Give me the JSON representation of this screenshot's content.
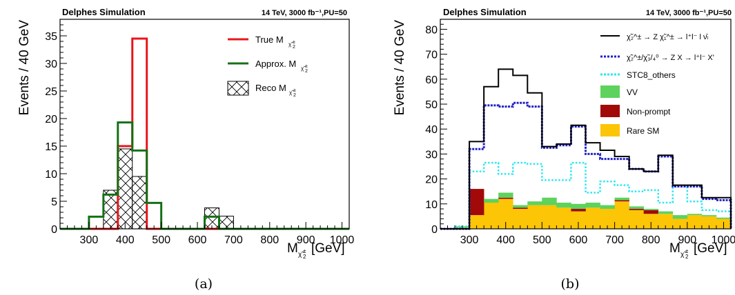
{
  "panels": [
    {
      "caption": "(a)",
      "header_left": "Delphes Simulation",
      "header_right": "14 TeV, 3000 fb⁻¹,PU=50",
      "chart_data": {
        "type": "bar",
        "style": "step-histogram",
        "ylabel": "Events / 40 GeV",
        "xlabel": "M_χ̃₂^± [GeV]",
        "xlim": [
          220,
          1020
        ],
        "ylim": [
          0,
          38
        ],
        "xticks": [
          300,
          400,
          500,
          600,
          700,
          800,
          900,
          1000
        ],
        "yticks": [
          0,
          5,
          10,
          15,
          20,
          25,
          30,
          35
        ],
        "bin_edges": [
          220,
          260,
          300,
          340,
          380,
          420,
          460,
          500,
          540,
          580,
          620,
          660,
          700,
          740,
          780,
          820,
          860,
          900,
          940,
          980,
          1020
        ],
        "legend_position": "top-right",
        "series": [
          {
            "name": "True M_χ̃₂^±",
            "draw": "line",
            "color": "#e8151b",
            "values": [
              0,
              0,
              0,
              0,
              15,
              34.5,
              0,
              0,
              0,
              0,
              0,
              0,
              0,
              0,
              0,
              0,
              0,
              0,
              0,
              0
            ]
          },
          {
            "name": "Approx. M_χ̃₂^±",
            "draw": "line",
            "color": "#157015",
            "values": [
              0,
              0,
              2.2,
              6.2,
              19.3,
              14.2,
              4.7,
              0,
              0,
              0,
              2.2,
              0,
              0,
              0,
              0,
              0,
              0,
              0,
              0,
              0
            ]
          },
          {
            "name": "Reco M_χ̃₂^±",
            "draw": "hatched",
            "color": "#000000",
            "values": [
              0,
              0,
              0,
              7.0,
              14.5,
              9.5,
              0,
              0,
              0,
              0,
              3.8,
              2.3,
              0,
              0,
              0,
              0,
              0,
              0,
              0,
              0
            ]
          }
        ]
      }
    },
    {
      "caption": "(b)",
      "header_left": "Delphes Simulation",
      "header_right": "14 TeV, 3000 fb⁻¹,PU=50",
      "chart_data": {
        "type": "bar",
        "style": "stacked-histogram",
        "ylabel": "Events / 40 GeV",
        "xlabel": "M_χ̃₂^± [GeV]",
        "xlim": [
          220,
          1020
        ],
        "ylim": [
          0,
          84
        ],
        "xticks": [
          300,
          400,
          500,
          600,
          700,
          800,
          900,
          1000
        ],
        "yticks": [
          0,
          10,
          20,
          30,
          40,
          50,
          60,
          70,
          80
        ],
        "bin_edges": [
          220,
          260,
          300,
          340,
          380,
          420,
          460,
          500,
          540,
          580,
          620,
          660,
          700,
          740,
          780,
          820,
          860,
          900,
          940,
          980,
          1020
        ],
        "legend_position": "top-right",
        "stack": [
          {
            "name": "Rare SM",
            "color": "#fcc505",
            "values": [
              0,
              0.5,
              5.5,
              10.5,
              12,
              8,
              9.5,
              9.5,
              8.5,
              7,
              8.5,
              8,
              11,
              7.5,
              6,
              6,
              4,
              5.5,
              5,
              4
            ]
          },
          {
            "name": "Non-prompt",
            "color": "#a10a08",
            "values": [
              0,
              0,
              10.5,
              0,
              0.5,
              0.5,
              0,
              0,
              0,
              1,
              0,
              0,
              0.5,
              0.5,
              1.5,
              0,
              0,
              0,
              0,
              0
            ]
          },
          {
            "name": "VV",
            "color": "#5dd25d",
            "values": [
              0,
              0.5,
              0,
              1.5,
              2,
              1,
              1.5,
              3,
              2,
              2,
              2,
              1.5,
              1,
              1,
              0.5,
              1,
              1.5,
              0.5,
              0.5,
              0.5
            ]
          }
        ],
        "lines": [
          {
            "name": "STC8_others",
            "color": "#28e8f0",
            "style": "dotted",
            "values": [
              0,
              1,
              23,
              26.5,
              22,
              26.5,
              26,
              19.5,
              19.5,
              26.5,
              14.5,
              19,
              17.5,
              15,
              15.5,
              10.5,
              17,
              11,
              7.5,
              7
            ]
          },
          {
            "name": "χ̃₂^±/χ̃₃/₄⁰ → Z X → l⁺l⁻ X'",
            "color": "#2020c8",
            "style": "dashed",
            "values": [
              0,
              0,
              32,
              49.5,
              49,
              50.5,
              49,
              32.5,
              33.5,
              41,
              30,
              28,
              28,
              24,
              23,
              29,
              17,
              17,
              12,
              11.5
            ]
          },
          {
            "name": "χ̃₂^± → Z χ̃₁^± → l⁺l⁻ l ν̄ₗ",
            "color": "#000000",
            "style": "solid",
            "values": [
              0,
              0,
              35,
              57,
              64,
              61.5,
              54.5,
              33,
              34,
              41.5,
              34.5,
              31.5,
              29,
              24,
              23,
              29.5,
              17.5,
              17.5,
              12.5,
              12.5
            ]
          }
        ]
      }
    }
  ]
}
